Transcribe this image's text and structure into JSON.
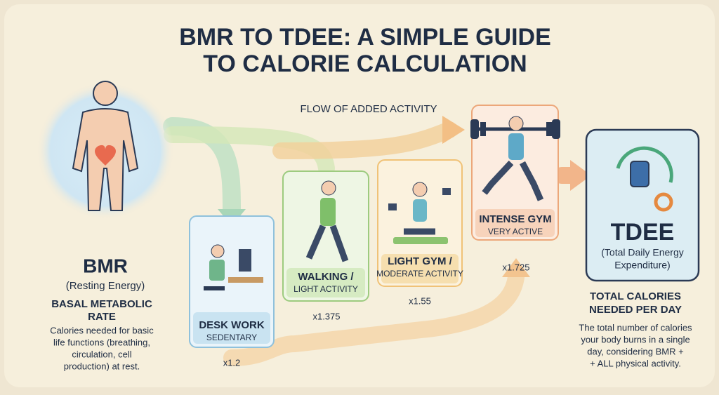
{
  "title_lines": [
    "BMR TO TDEE: A SIMPLE GUIDE",
    "TO CALORIE CALCULATION"
  ],
  "flow_label": "FLOW OF ADDED ACTIVITY",
  "bmr": {
    "label": "BMR",
    "subtitle": "(Resting Energy)",
    "heading_lines": [
      "BASAL METABOLIC",
      "RATE"
    ],
    "description_lines": [
      "Calories needed for basic",
      "life functions (breathing,",
      "circulation, cell",
      "production) at rest."
    ]
  },
  "levels": [
    {
      "title": "DESK WORK",
      "subtitle": "SEDENTARY",
      "multiplier": "x1.2"
    },
    {
      "title": "WALKING /",
      "subtitle": "LIGHT ACTIVITY",
      "multiplier": "x1.375"
    },
    {
      "title": "LIGHT GYM /",
      "subtitle": "MODERATE ACTIVITY",
      "multiplier": "x1.55"
    },
    {
      "title": "INTENSE GYM",
      "subtitle": "VERY ACTIVE",
      "multiplier": "x1.725"
    }
  ],
  "tdee": {
    "label": "TDEE",
    "full_name_lines": [
      "(Total Daily Energy",
      "Expenditure)"
    ],
    "heading_lines": [
      "TOTAL CALORIES",
      "NEEDED PER DAY"
    ],
    "description_lines": [
      "The total number of calories",
      "your body burns in a single",
      "day, considering BMR +",
      "+ ALL physical activity."
    ]
  }
}
